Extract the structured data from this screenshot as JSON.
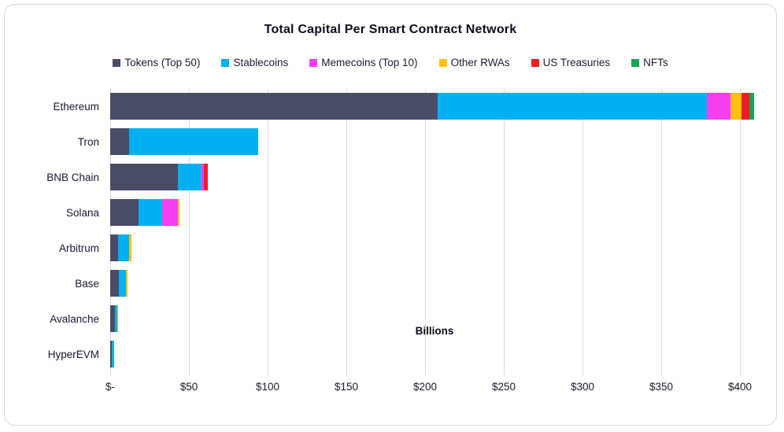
{
  "title": "Total Capital Per Smart Contract Network",
  "chart_data": {
    "type": "bar",
    "orientation": "horizontal",
    "stacked": true,
    "title": "Total Capital Per Smart Contract Network",
    "xlabel": "Billions",
    "ylabel": "",
    "units": "USD billions",
    "categories": [
      "Ethereum",
      "Tron",
      "BNB Chain",
      "Solana",
      "Arbitrum",
      "Base",
      "Avalanche",
      "HyperEVM"
    ],
    "series": [
      {
        "name": "Tokens (Top 50)",
        "color": "#494c66",
        "values": [
          208,
          12,
          43,
          18,
          5,
          5.5,
          3,
          1
        ]
      },
      {
        "name": "Stablecoins",
        "color": "#00b0f0",
        "values": [
          171,
          82,
          15,
          15,
          7,
          4.5,
          1.5,
          1.5
        ]
      },
      {
        "name": "Memecoins (Top 10)",
        "color": "#f93df0",
        "values": [
          15,
          0,
          1.5,
          10,
          0,
          0,
          0,
          0
        ]
      },
      {
        "name": "Other RWAs",
        "color": "#ffc010",
        "values": [
          7,
          0,
          0,
          1,
          1.5,
          1,
          0.5,
          0
        ]
      },
      {
        "name": "US Treasuries",
        "color": "#ee1c25",
        "values": [
          5,
          0,
          2.5,
          0,
          0,
          0,
          0,
          0
        ]
      },
      {
        "name": "NFTs",
        "color": "#17a551",
        "values": [
          3,
          0,
          0,
          0,
          0,
          0,
          0,
          0
        ]
      }
    ],
    "totals": [
      409,
      94,
      62,
      44,
      13.5,
      11,
      5,
      2.5
    ],
    "x_ticks": [
      "$-",
      "$50",
      "$100",
      "$150",
      "$200",
      "$250",
      "$300",
      "$350",
      "$400"
    ],
    "x_tick_values": [
      0,
      50,
      100,
      150,
      200,
      250,
      300,
      350,
      400
    ],
    "xlim": [
      0,
      412
    ],
    "grid": "vertical",
    "legend_position": "top"
  }
}
